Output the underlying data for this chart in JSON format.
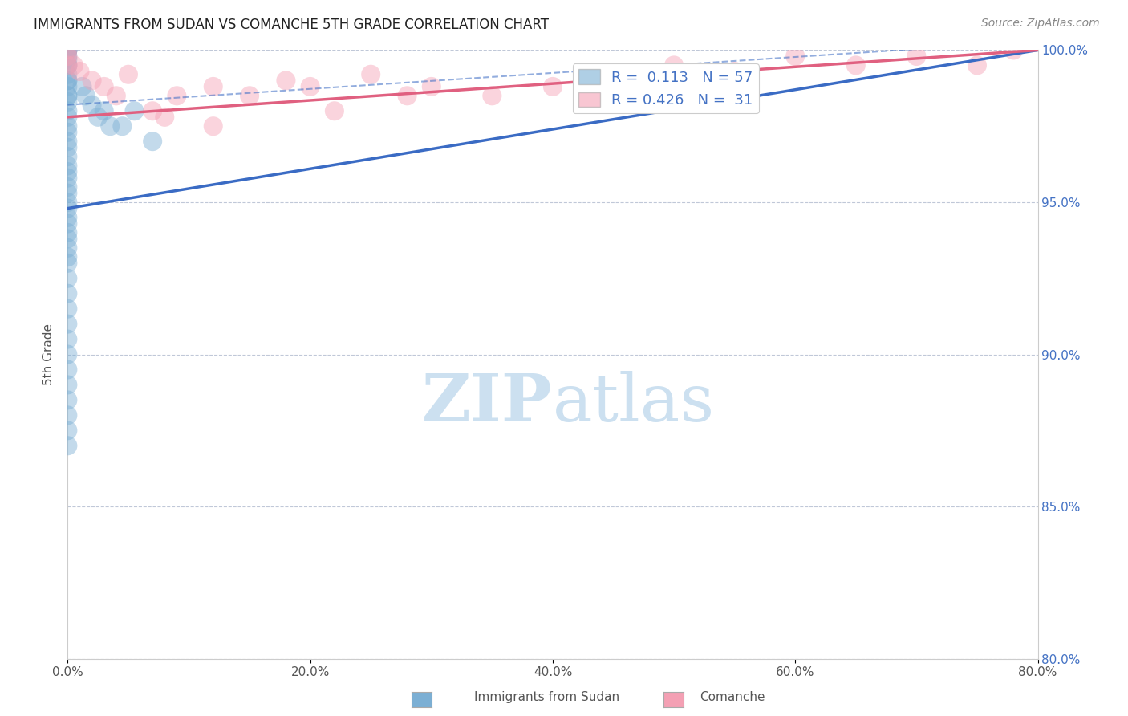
{
  "title": "IMMIGRANTS FROM SUDAN VS COMANCHE 5TH GRADE CORRELATION CHART",
  "source": "Source: ZipAtlas.com",
  "ylabel": "5th Grade",
  "xlim": [
    0.0,
    80.0
  ],
  "ylim": [
    80.0,
    100.0
  ],
  "xtick_labels": [
    "0.0%",
    "20.0%",
    "40.0%",
    "60.0%",
    "80.0%"
  ],
  "xtick_values": [
    0.0,
    20.0,
    40.0,
    60.0,
    80.0
  ],
  "ytick_labels": [
    "80.0%",
    "85.0%",
    "90.0%",
    "95.0%",
    "100.0%"
  ],
  "ytick_values": [
    80.0,
    85.0,
    90.0,
    95.0,
    100.0
  ],
  "sudan_R": 0.113,
  "sudan_N": 57,
  "comanche_R": 0.426,
  "comanche_N": 31,
  "sudan_color": "#7bafd4",
  "comanche_color": "#f4a0b4",
  "sudan_line_color": "#3a6bc4",
  "comanche_line_color": "#e06080",
  "background_color": "#ffffff",
  "sudan_line_x0": 0.0,
  "sudan_line_y0": 94.8,
  "sudan_line_x1": 80.0,
  "sudan_line_y1": 100.0,
  "sudan_dash_x0": 0.0,
  "sudan_dash_y0": 98.2,
  "sudan_dash_x1": 80.0,
  "sudan_dash_y1": 100.3,
  "comanche_line_x0": 0.0,
  "comanche_line_y0": 97.8,
  "comanche_line_x1": 80.0,
  "comanche_line_y1": 100.0,
  "sudan_x": [
    0.0,
    0.0,
    0.0,
    0.0,
    0.0,
    0.0,
    0.0,
    0.0,
    0.0,
    0.0,
    0.0,
    0.0,
    0.0,
    0.0,
    0.0,
    0.0,
    0.0,
    0.0,
    0.0,
    0.0,
    0.0,
    0.0,
    0.0,
    0.0,
    0.0,
    0.0,
    0.0,
    0.0,
    0.0,
    0.0,
    0.0,
    0.0,
    0.0,
    0.0,
    0.0,
    0.0,
    0.0,
    0.0,
    0.0,
    0.0,
    0.0,
    0.0,
    0.0,
    0.0,
    0.0,
    0.0,
    0.0,
    0.0,
    1.2,
    1.5,
    2.0,
    2.5,
    3.0,
    3.5,
    4.5,
    5.5,
    7.0
  ],
  "sudan_y": [
    100.0,
    100.0,
    100.0,
    100.0,
    99.8,
    99.7,
    99.5,
    99.5,
    99.2,
    99.0,
    99.0,
    98.8,
    98.5,
    98.5,
    98.3,
    98.0,
    97.8,
    97.5,
    97.3,
    97.0,
    96.8,
    96.5,
    96.2,
    96.0,
    95.8,
    95.5,
    95.3,
    95.0,
    94.8,
    94.5,
    94.3,
    94.0,
    93.8,
    93.5,
    93.2,
    93.0,
    92.5,
    92.0,
    91.5,
    91.0,
    90.5,
    90.0,
    89.5,
    89.0,
    88.5,
    88.0,
    87.5,
    87.0,
    98.8,
    98.5,
    98.2,
    97.8,
    98.0,
    97.5,
    97.5,
    98.0,
    97.0
  ],
  "comanche_x": [
    0.0,
    0.0,
    0.0,
    0.5,
    1.0,
    2.0,
    3.0,
    4.0,
    5.0,
    7.0,
    9.0,
    12.0,
    15.0,
    18.0,
    20.0,
    22.0,
    25.0,
    28.0,
    30.0,
    35.0,
    40.0,
    45.0,
    50.0,
    55.0,
    60.0,
    65.0,
    70.0,
    75.0,
    78.0,
    12.0,
    8.0
  ],
  "comanche_y": [
    100.0,
    99.8,
    99.5,
    99.5,
    99.3,
    99.0,
    98.8,
    98.5,
    99.2,
    98.0,
    98.5,
    98.8,
    98.5,
    99.0,
    98.8,
    98.0,
    99.2,
    98.5,
    98.8,
    98.5,
    98.8,
    99.2,
    99.5,
    99.3,
    99.8,
    99.5,
    99.8,
    99.5,
    100.0,
    97.5,
    97.8
  ]
}
